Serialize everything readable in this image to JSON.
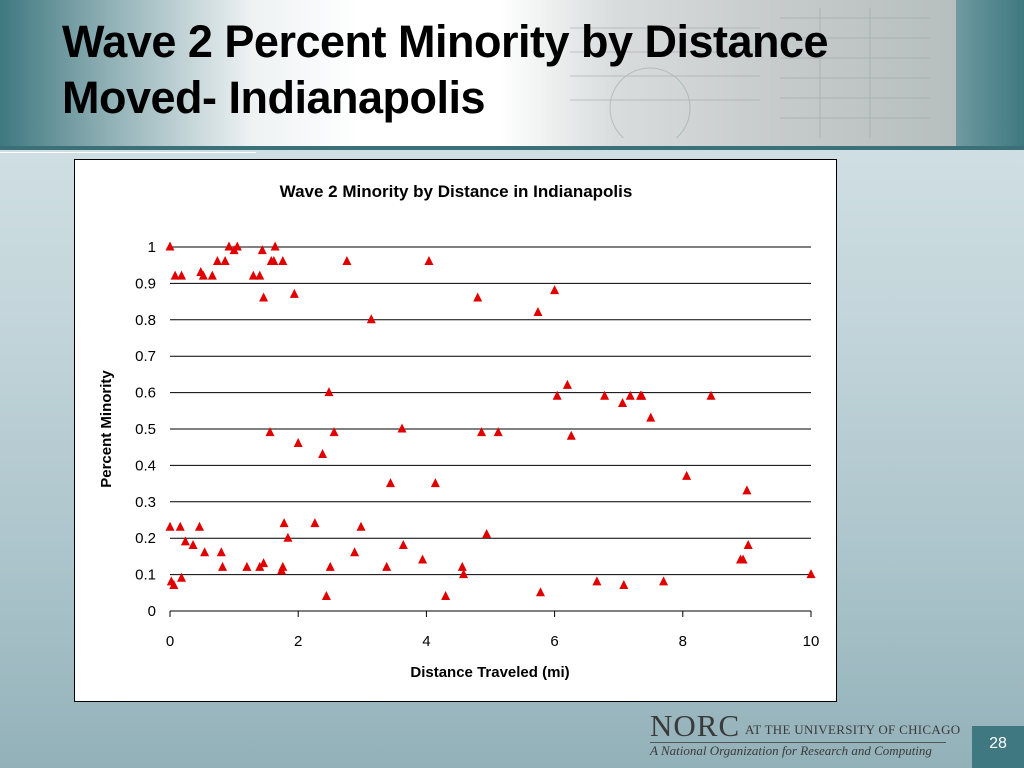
{
  "slide": {
    "title_line1": "Wave 2 Percent Minority by Distance",
    "title_line2": "Moved- Indianapolis",
    "page_number": "28"
  },
  "logo": {
    "name": "NORC",
    "affiliation": "AT THE UNIVERSITY OF CHICAGO",
    "tagline": "A National Organization for Research and Computing"
  },
  "colors": {
    "marker": "#e00000",
    "accent": "#3f7880"
  },
  "chart_data": {
    "type": "scatter",
    "title": "Wave 2 Minority by Distance in Indianapolis",
    "xlabel": "Distance Traveled (mi)",
    "ylabel": "Percent Minority",
    "xlim": [
      0,
      10
    ],
    "ylim": [
      0,
      1
    ],
    "xticks": [
      "0",
      "2",
      "4",
      "6",
      "8",
      "10"
    ],
    "yticks": [
      "0",
      "0.1",
      "0.2",
      "0.3",
      "0.4",
      "0.5",
      "0.6",
      "0.7",
      "0.8",
      "0.9",
      "1"
    ],
    "grid": "horizontal",
    "marker": "triangle",
    "points": [
      [
        0.0,
        1.0
      ],
      [
        0.08,
        0.92
      ],
      [
        0.18,
        0.92
      ],
      [
        0.48,
        0.93
      ],
      [
        0.52,
        0.92
      ],
      [
        0.66,
        0.92
      ],
      [
        0.74,
        0.96
      ],
      [
        0.86,
        0.96
      ],
      [
        0.92,
        1.0
      ],
      [
        1.0,
        0.99
      ],
      [
        1.05,
        1.0
      ],
      [
        1.3,
        0.92
      ],
      [
        1.4,
        0.92
      ],
      [
        1.44,
        0.99
      ],
      [
        1.46,
        0.86
      ],
      [
        1.58,
        0.96
      ],
      [
        1.62,
        0.96
      ],
      [
        1.64,
        1.0
      ],
      [
        1.76,
        0.96
      ],
      [
        1.94,
        0.87
      ],
      [
        2.76,
        0.96
      ],
      [
        4.04,
        0.96
      ],
      [
        3.14,
        0.8
      ],
      [
        4.8,
        0.86
      ],
      [
        5.74,
        0.82
      ],
      [
        6.0,
        0.88
      ],
      [
        0.0,
        0.23
      ],
      [
        0.02,
        0.08
      ],
      [
        0.06,
        0.07
      ],
      [
        0.16,
        0.23
      ],
      [
        0.18,
        0.09
      ],
      [
        0.24,
        0.19
      ],
      [
        0.36,
        0.18
      ],
      [
        0.46,
        0.23
      ],
      [
        0.54,
        0.16
      ],
      [
        0.8,
        0.16
      ],
      [
        0.82,
        0.12
      ],
      [
        1.2,
        0.12
      ],
      [
        1.4,
        0.12
      ],
      [
        1.46,
        0.13
      ],
      [
        1.56,
        0.49
      ],
      [
        1.74,
        0.11
      ],
      [
        1.76,
        0.12
      ],
      [
        1.78,
        0.24
      ],
      [
        1.84,
        0.2
      ],
      [
        2.0,
        0.46
      ],
      [
        2.26,
        0.24
      ],
      [
        2.38,
        0.43
      ],
      [
        2.44,
        0.04
      ],
      [
        2.48,
        0.6
      ],
      [
        2.5,
        0.12
      ],
      [
        2.56,
        0.49
      ],
      [
        2.88,
        0.16
      ],
      [
        2.98,
        0.23
      ],
      [
        3.38,
        0.12
      ],
      [
        3.44,
        0.35
      ],
      [
        3.62,
        0.5
      ],
      [
        3.64,
        0.18
      ],
      [
        3.94,
        0.14
      ],
      [
        4.14,
        0.35
      ],
      [
        4.3,
        0.04
      ],
      [
        4.56,
        0.12
      ],
      [
        4.58,
        0.1
      ],
      [
        4.86,
        0.49
      ],
      [
        4.94,
        0.21
      ],
      [
        5.12,
        0.49
      ],
      [
        5.78,
        0.05
      ],
      [
        6.04,
        0.59
      ],
      [
        6.2,
        0.62
      ],
      [
        6.26,
        0.48
      ],
      [
        6.66,
        0.08
      ],
      [
        6.78,
        0.59
      ],
      [
        7.06,
        0.57
      ],
      [
        7.08,
        0.07
      ],
      [
        7.18,
        0.59
      ],
      [
        7.34,
        0.59
      ],
      [
        7.36,
        0.59
      ],
      [
        7.5,
        0.53
      ],
      [
        7.7,
        0.08
      ],
      [
        8.06,
        0.37
      ],
      [
        8.44,
        0.59
      ],
      [
        8.9,
        0.14
      ],
      [
        8.94,
        0.14
      ],
      [
        9.0,
        0.33
      ],
      [
        9.02,
        0.18
      ],
      [
        10.0,
        0.1
      ]
    ]
  }
}
